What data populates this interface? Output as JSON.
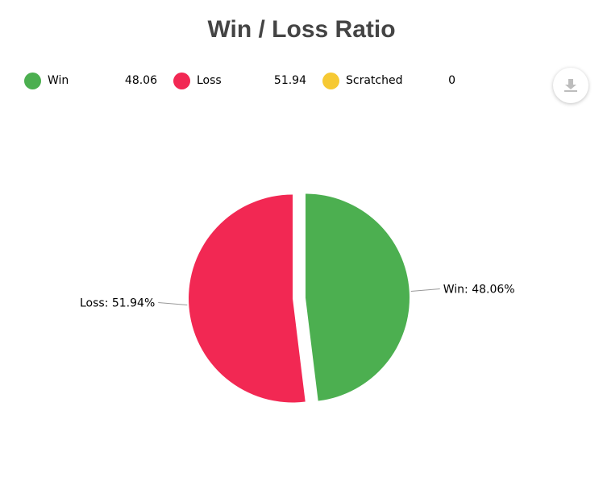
{
  "title": "Win / Loss Ratio",
  "legend": [
    {
      "name": "Win",
      "value": "48.06",
      "color": "#4caf50"
    },
    {
      "name": "Loss",
      "value": "51.94",
      "color": "#f22853"
    },
    {
      "name": "Scratched",
      "value": "0",
      "color": "#f6c933"
    }
  ],
  "download_icon": "download-icon",
  "chart_data": {
    "type": "pie",
    "title": "Win / Loss Ratio",
    "slices": [
      {
        "name": "Win",
        "value": 48.06,
        "color": "#4caf50",
        "label": "Win: 48.06%"
      },
      {
        "name": "Loss",
        "value": 51.94,
        "color": "#f22853",
        "label": "Loss: 51.94%"
      },
      {
        "name": "Scratched",
        "value": 0,
        "color": "#f6c933",
        "label": ""
      }
    ],
    "legend_position": "top"
  }
}
